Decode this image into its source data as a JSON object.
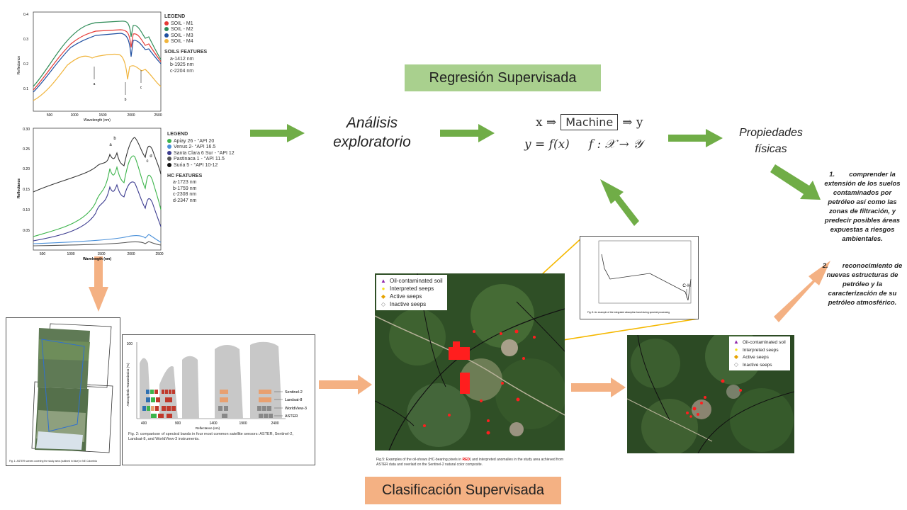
{
  "titles": {
    "regresion": "Regresión  Supervisada",
    "clasificacion": "Clasificación Supervisada"
  },
  "flow": {
    "analisis_l1": "Análisis",
    "analisis_l2": "exploratorio",
    "propiedades_l1": "Propiedades",
    "propiedades_l2": "físicas"
  },
  "formula": {
    "line1_x": "x ⇒",
    "machine": "Machine",
    "line1_y": "⇒ y",
    "line2": "y = f(x)     f : 𝒳 → 𝒴"
  },
  "conclusions": [
    {
      "num": "1.",
      "text": "comprender la extensión de los suelos contaminados por petróleo así como las zonas de filtración, y predecir posibles áreas expuestas a riesgos ambientales."
    },
    {
      "num": "2.",
      "text": "reconocimiento de nuevas estructuras de petróleo y la caracterización de su petróleo atmosférico."
    }
  ],
  "soil_chart": {
    "ylabel": "Reflectance",
    "xlabel": "Wavelength (nm)",
    "yticks": [
      "0.4",
      "0.3",
      "0.2",
      "0.1"
    ],
    "xticks": [
      "500",
      "1000",
      "1500",
      "2000",
      "2500"
    ],
    "markers": [
      "a",
      "b",
      "c"
    ],
    "legend_title": "LEGEND",
    "legend": [
      {
        "name": "SOIL - M1",
        "color": "#e53935"
      },
      {
        "name": "SOIL - M2",
        "color": "#2e8b57"
      },
      {
        "name": "SOIL - M3",
        "color": "#1f4fa0"
      },
      {
        "name": "SOIL - M4",
        "color": "#f0b43c"
      }
    ],
    "features_title": "SOILS FEATURES",
    "features": [
      "a-1412 nm",
      "b-1925 nm",
      "c-2204 nm"
    ]
  },
  "hc_chart": {
    "ylabel": "Reflectance",
    "xlabel": "Wavelength (nm)",
    "yticks": [
      "0.30",
      "0.25",
      "0.20",
      "0.15",
      "0.10",
      "0.05"
    ],
    "xticks": [
      "500",
      "1000",
      "1500",
      "2000",
      "2500"
    ],
    "markers": [
      "a",
      "b",
      "c",
      "d"
    ],
    "legend_title": "LEGEND",
    "legend": [
      {
        "name": "Apiay 26 - °API 20",
        "color": "#3cb44b"
      },
      {
        "name": "Venus 2- °API 16.5",
        "color": "#4a90d9"
      },
      {
        "name": "Santa Clara 6 Sur - °API 12",
        "color": "#3b3b8f"
      },
      {
        "name": "Pastinaca 1 - °API 11.5",
        "color": "#555555"
      },
      {
        "name": "Suria 5 - °API 10-12",
        "color": "#111111"
      }
    ],
    "features_title": "HC FEATURES",
    "features": [
      "a-1723 nm",
      "b-1759 nm",
      "c-2308 nm",
      "d-2347 nm"
    ]
  },
  "aster_caption": "Fig. 1: ASTER scenes covering the study area (outlined in blue) in NE Colombia",
  "bands_chart": {
    "ylabel": "Atmospheric Transmission (%)",
    "xlabel": "Reflectance (nm)",
    "ytick_top": "100",
    "xticks": [
      "400",
      "900",
      "1400",
      "1900",
      "2400"
    ],
    "sensors": [
      "Sentinel-2",
      "Landsat-8",
      "WorldView-3",
      "ASTER"
    ],
    "caption": "Fig. 2: comparison of spectral bands in four most common satellite sensors: ASTER, Sentinel-2, Landsat-8, and WorldView-3 instruments."
  },
  "map_legend": [
    {
      "icon": "▲",
      "color": "#8e24aa",
      "label": "Oil-contaminated soil"
    },
    {
      "icon": "●",
      "color": "#f5e11e",
      "label": "Interpreted seeps"
    },
    {
      "icon": "◆",
      "color": "#e6a200",
      "label": "Active seeps"
    },
    {
      "icon": "◇",
      "color": "#888888",
      "label": "Inactive seeps"
    }
  ],
  "map_caption_pre": "Fig.5: Examples of the oil-shows (HC-bearing pixels in ",
  "map_caption_red": "RED",
  "map_caption_post": ") and interpreted anomalies in the study area achieved from ASTER data and overlaid on the Sentinel-2 natural color composite.",
  "spectrum_small": {
    "label": "C-H",
    "caption": "Fig. 5: An example of the integrated absorption band during spectral processing"
  },
  "colors": {
    "green_arrow": "#70ad47",
    "orange_arrow": "#f4b183",
    "yellow_line": "#f5b800"
  }
}
